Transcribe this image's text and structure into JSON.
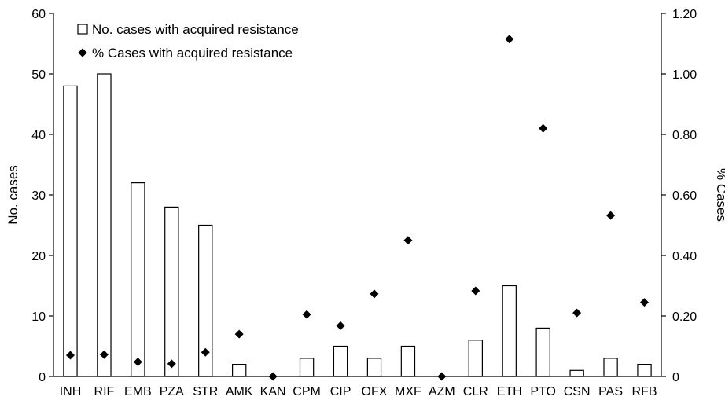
{
  "chart_data": {
    "type": "bar",
    "categories": [
      "INH",
      "RIF",
      "EMB",
      "PZA",
      "STR",
      "AMK",
      "KAN",
      "CPM",
      "CIP",
      "OFX",
      "MXF",
      "AZM",
      "CLR",
      "ETH",
      "PTO",
      "CSN",
      "PAS",
      "RFB"
    ],
    "series": [
      {
        "name": "No. cases with acquired resistance",
        "type": "bar",
        "axis": "left",
        "values": [
          48,
          50,
          32,
          28,
          25,
          2,
          0,
          3,
          5,
          3,
          5,
          0,
          6,
          15,
          8,
          1,
          3,
          2
        ]
      },
      {
        "name": "% Cases with acquired resistance",
        "type": "scatter",
        "axis": "right",
        "values": [
          0.07,
          0.072,
          0.048,
          0.042,
          0.08,
          0.14,
          0.0,
          0.205,
          0.168,
          0.273,
          0.45,
          0.0,
          0.283,
          1.115,
          0.82,
          0.21,
          0.532,
          0.245
        ]
      }
    ],
    "ylabel": "No. cases",
    "y2label": "% Cases",
    "ylim": [
      0,
      60
    ],
    "y2lim": [
      0,
      1.2
    ],
    "yticks": [
      "0",
      "10",
      "20",
      "30",
      "40",
      "50",
      "60"
    ],
    "y2ticks": [
      "0",
      "0.20",
      "0.40",
      "0.60",
      "0.80",
      "1.00",
      "1.20"
    ],
    "legend_position": "top-left",
    "grid": false
  }
}
